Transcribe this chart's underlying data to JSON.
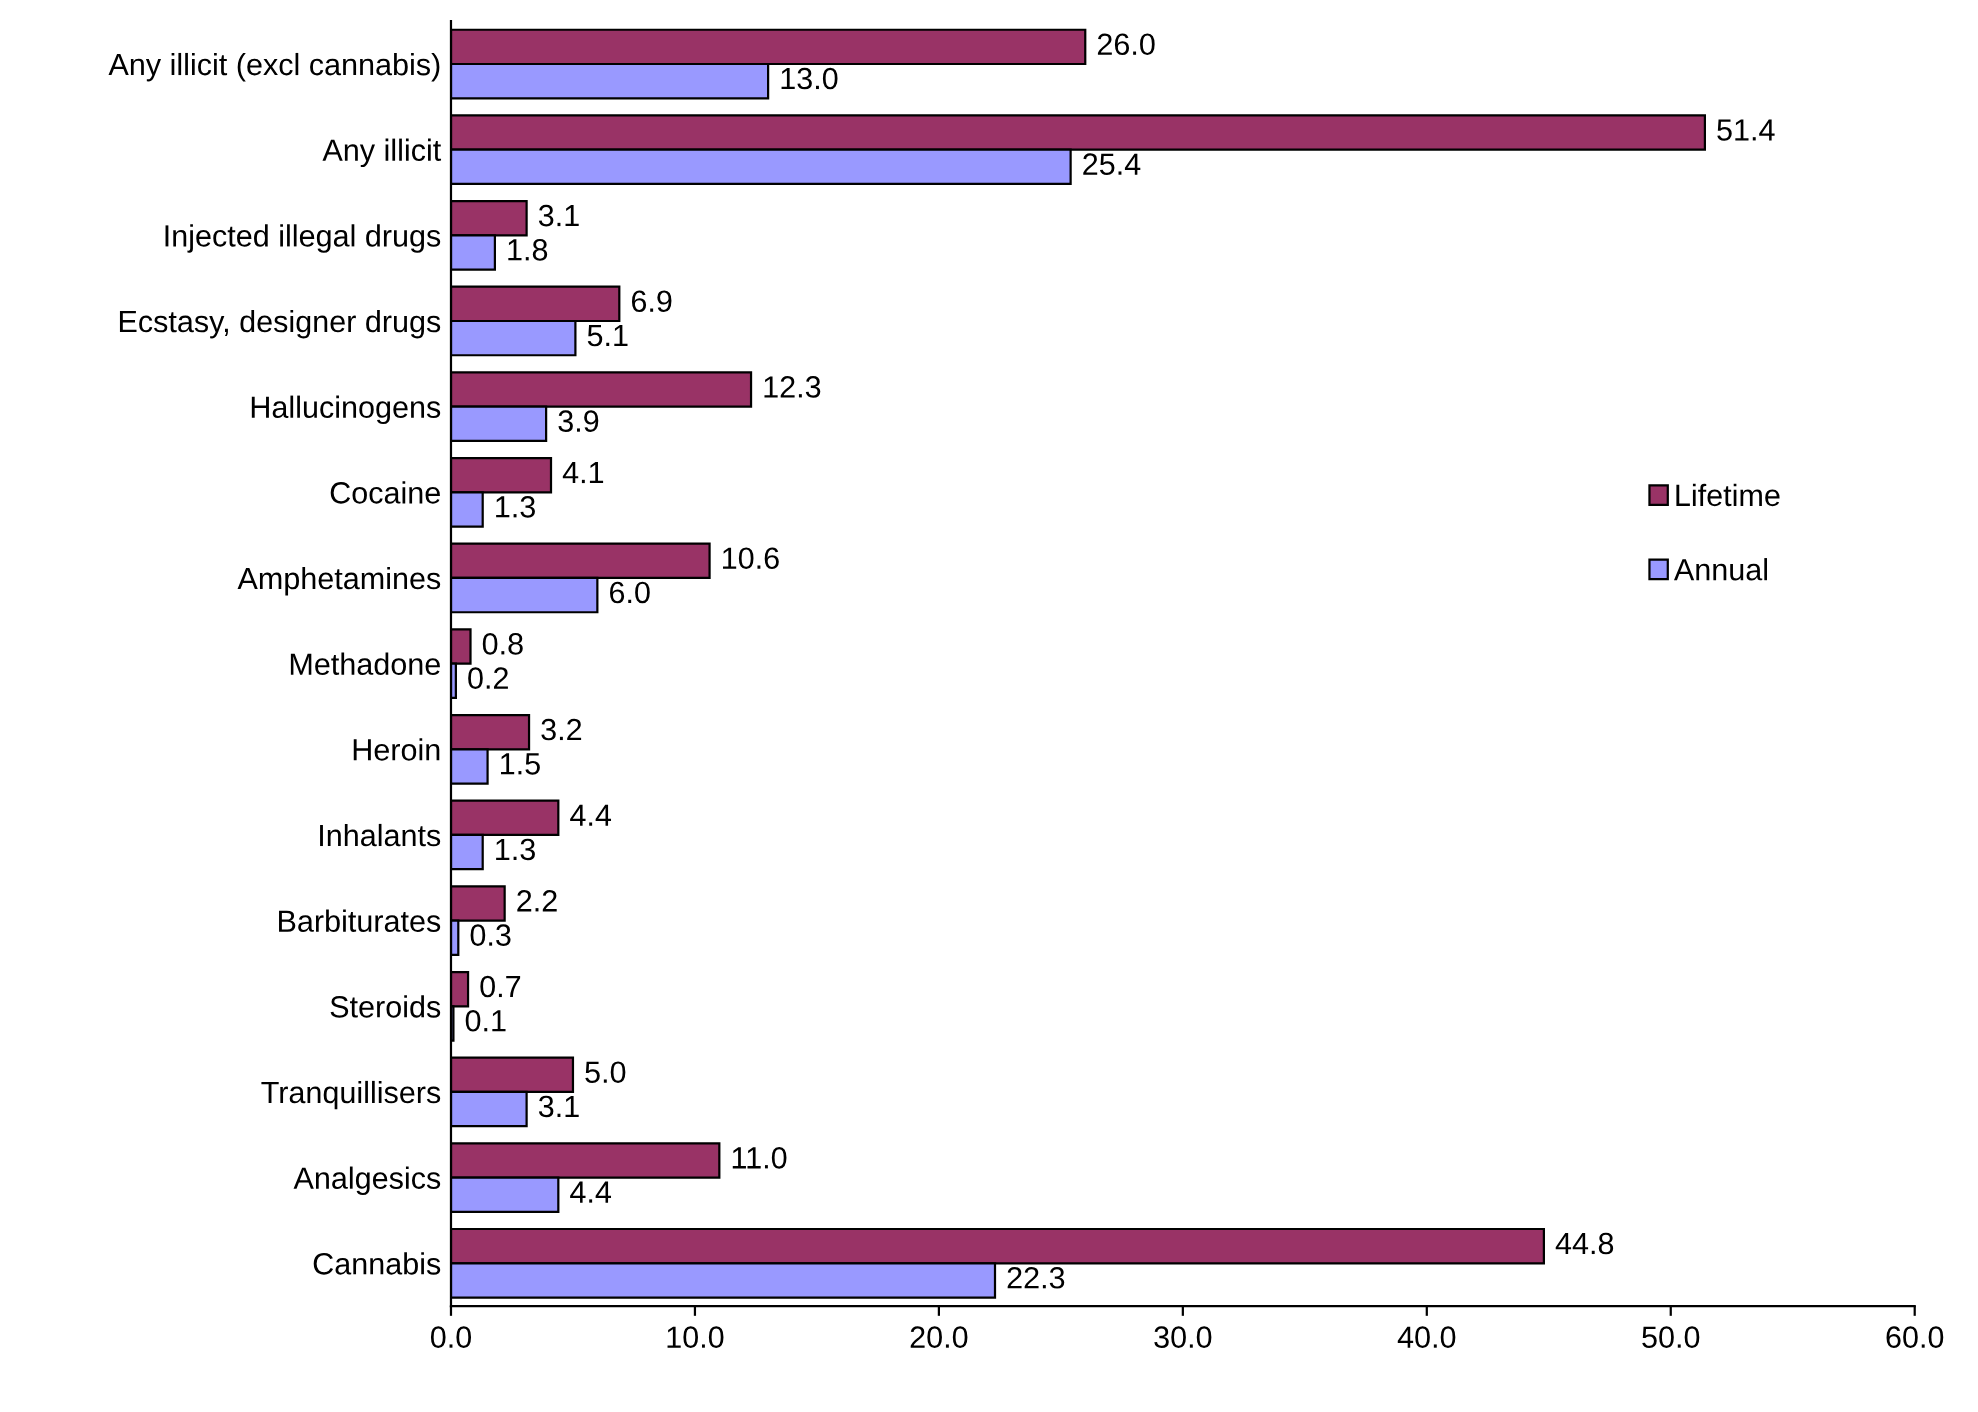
{
  "chart_data": {
    "type": "bar",
    "orientation": "horizontal",
    "categories": [
      "Any illicit (excl cannabis)",
      "Any illicit",
      "Injected illegal drugs",
      "Ecstasy, designer drugs",
      "Hallucinogens",
      "Cocaine",
      "Amphetamines",
      "Methadone",
      "Heroin",
      "Inhalants",
      "Barbiturates",
      "Steroids",
      "Tranquillisers",
      "Analgesics",
      "Cannabis"
    ],
    "series": [
      {
        "name": "Lifetime",
        "color": "#993366",
        "values": [
          26.0,
          51.4,
          3.1,
          6.9,
          12.3,
          4.1,
          10.6,
          0.8,
          3.2,
          4.4,
          2.2,
          0.7,
          5.0,
          11.0,
          44.8
        ],
        "value_labels": [
          "26.0",
          "51.4",
          "3.1",
          "6.9",
          "12.3",
          "4.1",
          "10.6",
          "0.8",
          "3.2",
          "4.4",
          "2.2",
          "0.7",
          "5.0",
          "11.0",
          "44.8"
        ]
      },
      {
        "name": "Annual",
        "color": "#9999ff",
        "values": [
          13.0,
          25.4,
          1.8,
          5.1,
          3.9,
          1.3,
          6.0,
          0.2,
          1.5,
          1.3,
          0.3,
          0.1,
          3.1,
          4.4,
          22.3
        ],
        "value_labels": [
          "13.0",
          "25.4",
          "1.8",
          "5.1",
          "3.9",
          "1.3",
          "6.0",
          "0.2",
          "1.5",
          "1.3",
          "0.3",
          "0.1",
          "3.1",
          "4.4",
          "22.3"
        ]
      }
    ],
    "xlim": [
      0,
      60
    ],
    "xticks": [
      {
        "value": 0,
        "label": "0.0"
      },
      {
        "value": 10,
        "label": "10.0"
      },
      {
        "value": 20,
        "label": "20.0"
      },
      {
        "value": 30,
        "label": "30.0"
      },
      {
        "value": 40,
        "label": "40.0"
      },
      {
        "value": 50,
        "label": "50.0"
      },
      {
        "value": 60,
        "label": "60.0"
      }
    ],
    "grid": false,
    "legend": "right"
  }
}
